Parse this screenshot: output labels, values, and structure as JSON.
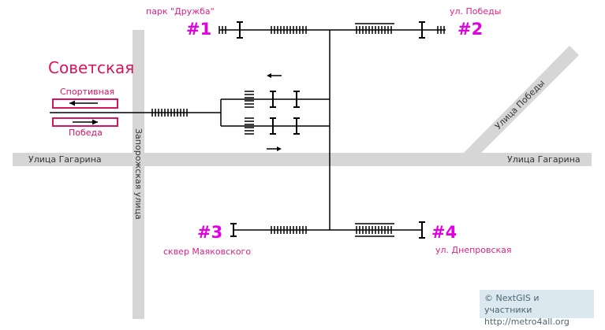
{
  "station": {
    "name": "Советская",
    "directions": [
      {
        "label": "Спортивная",
        "arrow": "left"
      },
      {
        "label": "Победа",
        "arrow": "right"
      }
    ]
  },
  "streets": {
    "gagarina_left": "Улица Гагарина",
    "gagarina_right": "Улица Гагарина",
    "zaporozhskaya": "Запорожская улица",
    "pobedy_diag": "Улица Победы"
  },
  "exits": [
    {
      "number": "#1",
      "name": "парк \"Дружба\""
    },
    {
      "number": "#2",
      "name": "ул. Победы"
    },
    {
      "number": "#3",
      "name": "сквер Маяковского"
    },
    {
      "number": "#4",
      "name": "ул. Днепровская"
    }
  ],
  "credit": {
    "line1": "© NextGIS и участники",
    "line2": "http://metro4all.org"
  },
  "colors": {
    "road": "#d6d6d6",
    "station_red": "#d6155f",
    "exit_magenta": "#e000e0",
    "lines": "#000000"
  }
}
